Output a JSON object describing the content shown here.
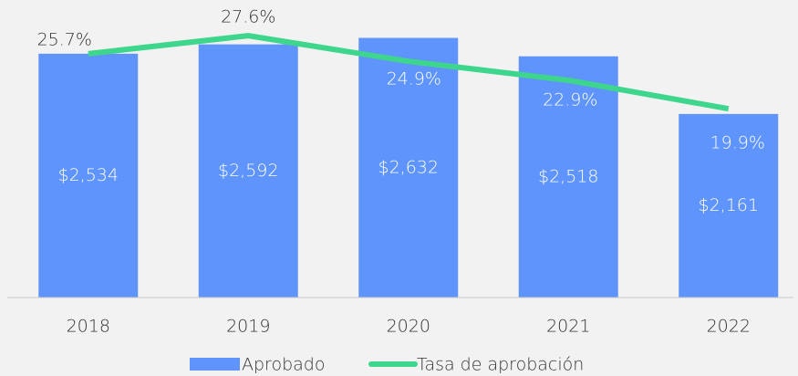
{
  "chart_data": {
    "type": "bar_line",
    "categories": [
      "2018",
      "2019",
      "2020",
      "2021",
      "2022"
    ],
    "series": [
      {
        "name": "Aprobado",
        "type": "bar",
        "color": "#5e94fb",
        "values": [
          2534,
          2592,
          2632,
          2518,
          2161
        ],
        "value_labels": [
          "$2,534",
          "$2,592",
          "$2,632",
          "$2,518",
          "$2,161"
        ]
      },
      {
        "name": "Tasa de aprobación",
        "type": "line",
        "axis": "y2",
        "color": "#3dd68c",
        "values": [
          25.7,
          27.6,
          24.9,
          22.9,
          19.9
        ],
        "value_labels": [
          "25.7%",
          "27.6%",
          "24.9%",
          "22.9%",
          "19.9%"
        ]
      }
    ],
    "ylim": [
      1025,
      2810
    ],
    "y2lim": [
      0,
      30.4
    ],
    "legend": "bottom"
  }
}
